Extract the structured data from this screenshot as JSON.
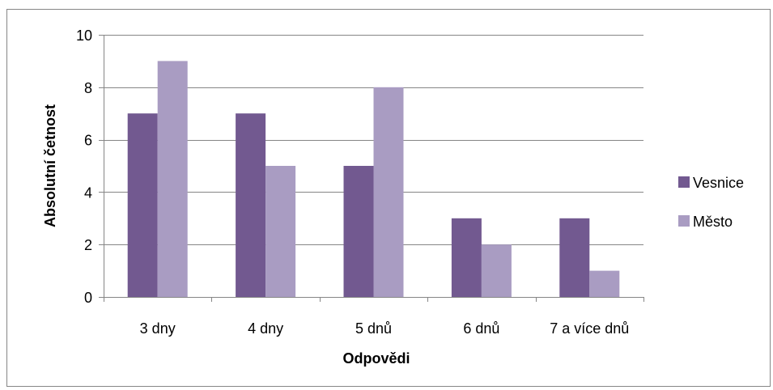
{
  "chart_data": {
    "type": "bar",
    "title": "",
    "xlabel": "Odpovědi",
    "ylabel": "Absolutní četnost",
    "categories": [
      "3 dny",
      "4 dny",
      "5 dnů",
      "6 dnů",
      "7 a více dnů"
    ],
    "series": [
      {
        "name": "Vesnice",
        "values": [
          7,
          7,
          5,
          3,
          3
        ],
        "color": "#725990"
      },
      {
        "name": "Město",
        "values": [
          9,
          5,
          8,
          2,
          1
        ],
        "color": "#a99cc2"
      }
    ],
    "ylim": [
      0,
      10
    ],
    "yticks": [
      0,
      2,
      4,
      6,
      8,
      10
    ],
    "grid": true,
    "legend_position": "right"
  }
}
